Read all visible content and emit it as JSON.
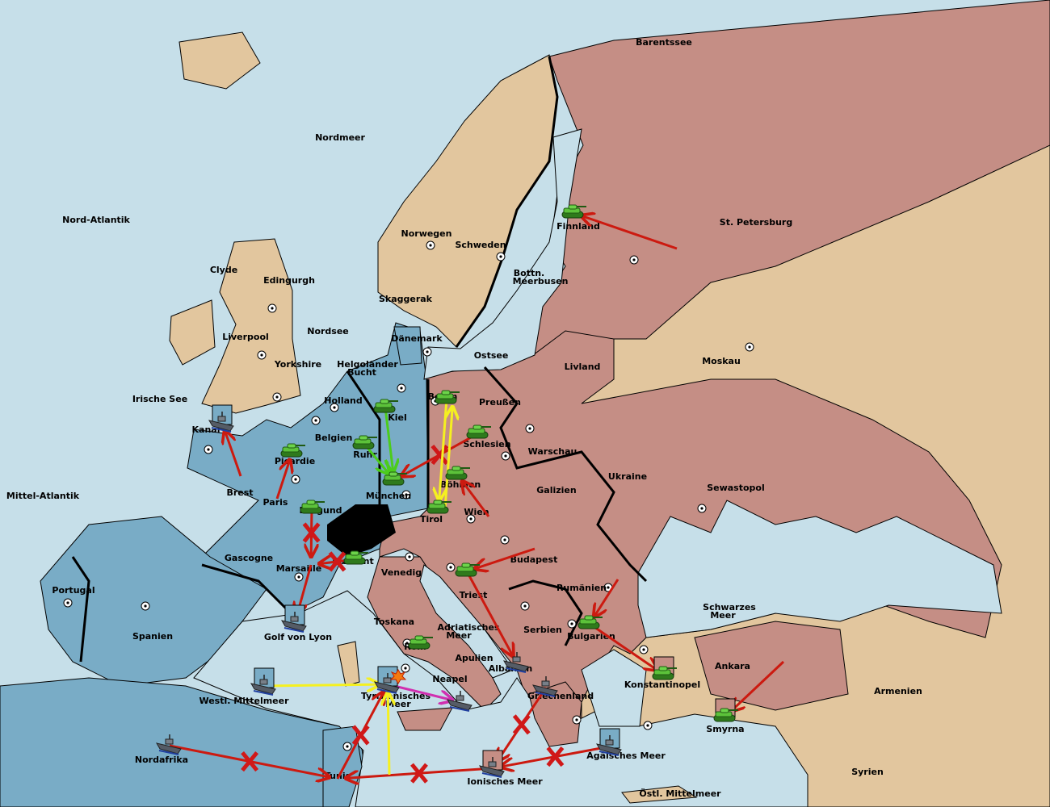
{
  "colors": {
    "sea": "#c6dfe9",
    "neutral": "#e2c69e",
    "blue_power": "#79acc6",
    "red_power": "#c58e85",
    "switzerland": "#000000",
    "order_move": "#cc1a10",
    "order_support": "#f5f020",
    "order_green": "#4ccc1c",
    "order_convoy": "#d030b0"
  },
  "provinces": {
    "barentssee": "Barentssee",
    "nordmeer": "Nordmeer",
    "nordatlantik": "Nord-Atlantik",
    "finnland": "Finnland",
    "stpetersburg": "St. Petersburg",
    "norwegen": "Norwegen",
    "schweden": "Schweden",
    "bottn1": "Bottn.",
    "bottn2": "Meerbusen",
    "clyde": "Clyde",
    "edingurgh": "Edingurgh",
    "skaggerak": "Skaggerak",
    "liverpool": "Liverpool",
    "nordsee": "Nordsee",
    "daenemark": "Dänemark",
    "ostsee": "Ostsee",
    "livland": "Livland",
    "moskau": "Moskau",
    "yorkshire": "Yorkshire",
    "helgo1": "Helgoländer",
    "helgo2": "Bucht",
    "irische": "Irische See",
    "holland": "Holland",
    "kiel": "Kiel",
    "berlin": "Berlin",
    "preussen": "Preußen",
    "kanal": "Kanal",
    "belgien": "Belgien",
    "schlesien": "Schlesien",
    "warschau": "Warschau",
    "ukraine": "Ukraine",
    "picardie": "Picardie",
    "ruhr": "Ruhr",
    "boehmen": "Böhmen",
    "galizien": "Galizien",
    "sewastopol": "Sewastopol",
    "brest": "Brest",
    "paris": "Paris",
    "muenchen": "München",
    "mittelatlantik": "Mittel-Atlantik",
    "burgund": "Burgund",
    "wien": "Wien",
    "tirol": "Tirol",
    "gascogne": "Gascogne",
    "budapest": "Budapest",
    "piemont": "Piemont",
    "marseille": "Marsaille",
    "venedig": "Venedig",
    "portugal": "Portugal",
    "rumaenien": "Rumänien",
    "triest": "Triest",
    "schwarzes1": "Schwarzes",
    "schwarzes2": "Meer",
    "toskana": "Toskana",
    "spanien": "Spanien",
    "adria1": "Adriatisches",
    "adria2": "Meer",
    "serbien": "Serbien",
    "bulgarien": "Bulgarien",
    "golflyon": "Golf von Lyon",
    "rom": "Rom",
    "apulien": "Apulien",
    "albanien": "Albanien",
    "konstantinopel": "Konstantinopel",
    "ankara": "Ankara",
    "armenien": "Armenien",
    "neapel": "Neapel",
    "westmittelmeer": "Westl. Mittelmeer",
    "tyrrh1": "Tyrrhenisches",
    "tyrrh2": "Meer",
    "griechenland": "Griechenland",
    "smyrna": "Smyrna",
    "nordafrika": "Nordafrika",
    "aegaeis": "Ägäisches Meer",
    "tunis": "Tunis",
    "ionisches": "Ionisches Meer",
    "syrien": "Syrien",
    "oestlmittelmeer": "Östl. Mittelmeer"
  },
  "units": [
    {
      "type": "army",
      "province": "Finnland",
      "power": "red"
    },
    {
      "type": "army",
      "province": "Kiel",
      "power": "blue"
    },
    {
      "type": "army",
      "province": "Ruhr",
      "power": "blue"
    },
    {
      "type": "army",
      "province": "München",
      "power": "blue"
    },
    {
      "type": "army",
      "province": "Berlin",
      "power": "blue"
    },
    {
      "type": "army",
      "province": "Schlesien",
      "power": "red"
    },
    {
      "type": "army",
      "province": "Böhmen",
      "power": "red"
    },
    {
      "type": "army",
      "province": "Tirol",
      "power": "blue"
    },
    {
      "type": "army",
      "province": "Picardie",
      "power": "blue"
    },
    {
      "type": "army",
      "province": "Burgund",
      "power": "blue"
    },
    {
      "type": "army",
      "province": "Piemont",
      "power": "red"
    },
    {
      "type": "army",
      "province": "Triest",
      "power": "red"
    },
    {
      "type": "army",
      "province": "Rom",
      "power": "red"
    },
    {
      "type": "army",
      "province": "Bulgarien",
      "power": "red"
    },
    {
      "type": "army",
      "province": "Konstantinopel",
      "power": "red"
    },
    {
      "type": "army",
      "province": "Smyrna",
      "power": "red"
    },
    {
      "type": "fleet",
      "province": "Kanal",
      "power": "blue"
    },
    {
      "type": "fleet",
      "province": "Golf von Lyon",
      "power": "blue"
    },
    {
      "type": "fleet",
      "province": "Westl. Mittelmeer",
      "power": "blue"
    },
    {
      "type": "fleet",
      "province": "Nordafrika",
      "power": "blue"
    },
    {
      "type": "fleet",
      "province": "Tyrrhenisches Meer",
      "power": "blue"
    },
    {
      "type": "fleet",
      "province": "Neapel",
      "power": "red"
    },
    {
      "type": "fleet",
      "province": "Albanien",
      "power": "red"
    },
    {
      "type": "fleet",
      "province": "Griechenland",
      "power": "red"
    },
    {
      "type": "fleet",
      "province": "Ionisches Meer",
      "power": "red"
    },
    {
      "type": "fleet",
      "province": "Ägäisches Meer",
      "power": "blue"
    }
  ],
  "orders": [
    {
      "from": "St. Petersburg",
      "to": "Finnland",
      "kind": "move",
      "failed": false
    },
    {
      "from": "Brest",
      "to": "Kanal",
      "kind": "move",
      "failed": false
    },
    {
      "from": "Paris",
      "to": "Picardie",
      "kind": "move",
      "failed": false
    },
    {
      "from": "Schlesien",
      "to": "München",
      "kind": "move",
      "failed": true
    },
    {
      "from": "Wien",
      "to": "Böhmen",
      "kind": "move",
      "failed": false
    },
    {
      "from": "Budapest",
      "to": "Triest",
      "kind": "move",
      "failed": false
    },
    {
      "from": "Triest",
      "to": "Albanien",
      "kind": "move",
      "failed": false
    },
    {
      "from": "Rumänien",
      "to": "Bulgarien",
      "kind": "move",
      "failed": false
    },
    {
      "from": "Bulgarien",
      "to": "Konstantinopel",
      "kind": "move",
      "failed": false
    },
    {
      "from": "Ankara",
      "to": "Smyrna",
      "kind": "move",
      "failed": false
    },
    {
      "from": "Burgund",
      "to": "Marseille",
      "kind": "move",
      "failed": true
    },
    {
      "from": "Marseille",
      "to": "Golf von Lyon",
      "kind": "move",
      "failed": false
    },
    {
      "from": "Piemont",
      "to": "Marseille",
      "kind": "move",
      "failed": true
    },
    {
      "from": "Griechenland",
      "to": "Ionisches Meer",
      "kind": "move",
      "failed": true
    },
    {
      "from": "Ägäisches Meer",
      "to": "Ionisches Meer",
      "kind": "move",
      "failed": true
    },
    {
      "from": "Ionisches Meer",
      "to": "Tunis",
      "kind": "move",
      "failed": true
    },
    {
      "from": "Nordafrika",
      "to": "Tunis",
      "kind": "move",
      "failed": true
    },
    {
      "from": "Tunis",
      "to": "Tyrrhenisches Meer",
      "kind": "move",
      "failed": true
    },
    {
      "from": "Kiel",
      "to": "München",
      "kind": "green",
      "failed": false
    },
    {
      "from": "Ruhr",
      "to": "München",
      "kind": "green",
      "failed": false
    },
    {
      "from": "Berlin",
      "to": "Tirol",
      "kind": "support",
      "failed": false
    },
    {
      "from": "Tirol",
      "to": "Berlin",
      "kind": "support",
      "failed": false
    },
    {
      "from": "Westl. Mittelmeer",
      "to": "Tyrrhenisches Meer",
      "kind": "support",
      "failed": false
    },
    {
      "from": "Tunis",
      "to": "Tyrrhenisches Meer",
      "kind": "support",
      "failed": false
    },
    {
      "from": "Tyrrhenisches Meer",
      "to": "Neapel",
      "kind": "convoy",
      "failed": false
    }
  ]
}
